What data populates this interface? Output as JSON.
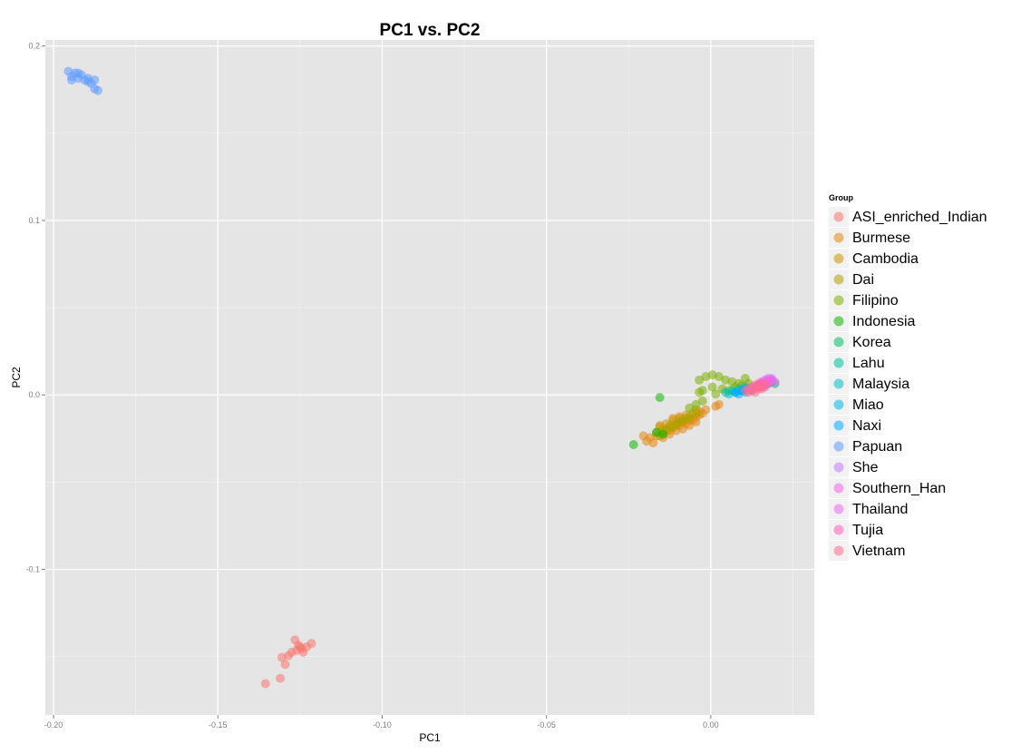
{
  "chart_data": {
    "type": "scatter",
    "title": "PC1 vs. PC2",
    "xlabel": "PC1",
    "ylabel": "PC2",
    "xlim": [
      -0.2025,
      0.0315
    ],
    "ylim": [
      -0.1835,
      0.2035
    ],
    "x_ticks": [
      -0.2,
      -0.15,
      -0.1,
      -0.05,
      0.0
    ],
    "x_tick_labels": [
      "-0.20",
      "-0.15",
      "-0.10",
      "-0.05",
      "0.00"
    ],
    "y_ticks": [
      -0.1,
      0.0,
      0.1,
      0.2
    ],
    "y_tick_labels": [
      "-0.1",
      "0.0",
      "0.1",
      "0.2"
    ],
    "grid": true,
    "legend": {
      "title": "Group",
      "position": "right"
    },
    "series": [
      {
        "name": "ASI_enriched_Indian",
        "color": "#F8766D",
        "points": [
          [
            -0.1355,
            -0.1655
          ],
          [
            -0.131,
            -0.1625
          ],
          [
            -0.1295,
            -0.1545
          ],
          [
            -0.1305,
            -0.1505
          ],
          [
            -0.1285,
            -0.1495
          ],
          [
            -0.1275,
            -0.1475
          ],
          [
            -0.126,
            -0.1465
          ],
          [
            -0.1265,
            -0.1405
          ],
          [
            -0.125,
            -0.1445
          ],
          [
            -0.124,
            -0.1475
          ],
          [
            -0.123,
            -0.1445
          ],
          [
            -0.1215,
            -0.1425
          ],
          [
            -0.1255,
            -0.1435
          ],
          [
            -0.1245,
            -0.1455
          ]
        ]
      },
      {
        "name": "Burmese",
        "color": "#E68613",
        "points": [
          [
            -0.0195,
            -0.0265
          ],
          [
            -0.0185,
            -0.0245
          ],
          [
            -0.0175,
            -0.0275
          ],
          [
            -0.0165,
            -0.0235
          ],
          [
            -0.0145,
            -0.0215
          ],
          [
            -0.0135,
            -0.0195
          ],
          [
            -0.0125,
            -0.0205
          ],
          [
            -0.0115,
            -0.0185
          ],
          [
            -0.0105,
            -0.0165
          ],
          [
            -0.0095,
            -0.0175
          ],
          [
            -0.0085,
            -0.0155
          ],
          [
            -0.0075,
            -0.0165
          ],
          [
            -0.0065,
            -0.0135
          ],
          [
            -0.0055,
            -0.0145
          ],
          [
            -0.0045,
            -0.0125
          ],
          [
            -0.0035,
            -0.0115
          ],
          [
            -0.0025,
            -0.0105
          ],
          [
            -0.0015,
            -0.0085
          ],
          [
            0.0015,
            -0.0065
          ],
          [
            0.0025,
            -0.0055
          ],
          [
            -0.0155,
            -0.0185
          ],
          [
            -0.0145,
            -0.0245
          ],
          [
            -0.0125,
            -0.0225
          ],
          [
            -0.0105,
            -0.0205
          ],
          [
            -0.0085,
            -0.0195
          ],
          [
            -0.0065,
            -0.0175
          ],
          [
            -0.0045,
            -0.0155
          ],
          [
            -0.0205,
            -0.0235
          ],
          [
            -0.0115,
            -0.0135
          ],
          [
            -0.0095,
            -0.0125
          ]
        ]
      },
      {
        "name": "Cambodia",
        "color": "#CD9600",
        "points": [
          [
            -0.0155,
            -0.0175
          ],
          [
            -0.0135,
            -0.0165
          ],
          [
            -0.0115,
            -0.0145
          ],
          [
            -0.0095,
            -0.0135
          ],
          [
            -0.0075,
            -0.0115
          ],
          [
            -0.0055,
            -0.0105
          ],
          [
            -0.0035,
            -0.0095
          ],
          [
            -0.0125,
            -0.0185
          ],
          [
            -0.0105,
            -0.0175
          ],
          [
            -0.0085,
            -0.0155
          ],
          [
            -0.0065,
            -0.0145
          ],
          [
            -0.0145,
            -0.0225
          ],
          [
            -0.0045,
            -0.0085
          ]
        ]
      },
      {
        "name": "Dai",
        "color": "#ABA300",
        "points": [
          [
            -0.0165,
            -0.0215
          ],
          [
            -0.0145,
            -0.0195
          ],
          [
            -0.0125,
            -0.0175
          ],
          [
            -0.0105,
            -0.0165
          ],
          [
            -0.0085,
            -0.0145
          ],
          [
            -0.0065,
            -0.0125
          ],
          [
            -0.0045,
            -0.0105
          ],
          [
            -0.0135,
            -0.0205
          ],
          [
            -0.0115,
            -0.0185
          ],
          [
            -0.0095,
            -0.0155
          ],
          [
            -0.0155,
            -0.0235
          ],
          [
            -0.0075,
            -0.0135
          ]
        ]
      },
      {
        "name": "Filipino",
        "color": "#7CAE00",
        "points": [
          [
            -0.0035,
            0.0085
          ],
          [
            -0.0015,
            0.0105
          ],
          [
            0.0005,
            0.0115
          ],
          [
            0.0025,
            0.0105
          ],
          [
            0.0045,
            0.0085
          ],
          [
            0.0065,
            0.0075
          ],
          [
            0.0085,
            0.0065
          ],
          [
            -0.0025,
            0.0025
          ],
          [
            0.0005,
            0.0045
          ],
          [
            0.0035,
            0.0035
          ],
          [
            0.0055,
            0.0025
          ],
          [
            0.0075,
            0.0045
          ],
          [
            -0.0045,
            -0.0055
          ],
          [
            -0.0065,
            -0.0075
          ],
          [
            -0.0025,
            -0.0035
          ],
          [
            0.0015,
            0.0005
          ],
          [
            0.0105,
            0.0095
          ],
          [
            0.0115,
            0.0065
          ],
          [
            -0.0035,
            0.0015
          ],
          [
            0.0095,
            0.0055
          ]
        ]
      },
      {
        "name": "Indonesia",
        "color": "#0CB702",
        "points": [
          [
            -0.0235,
            -0.0285
          ],
          [
            -0.0165,
            -0.0215
          ],
          [
            -0.0155,
            -0.0015
          ],
          [
            -0.0145,
            -0.0225
          ]
        ]
      },
      {
        "name": "Korea",
        "color": "#00BE67",
        "points": [
          [
            0.0165,
            0.0055
          ],
          [
            0.0175,
            0.0065
          ],
          [
            0.0185,
            0.0075
          ],
          [
            0.0155,
            0.0045
          ],
          [
            0.0195,
            0.0065
          ]
        ]
      },
      {
        "name": "Lahu",
        "color": "#00C19A",
        "points": [
          [
            0.0045,
            0.0015
          ],
          [
            0.0065,
            0.0025
          ],
          [
            0.0085,
            0.0035
          ],
          [
            0.0105,
            0.0045
          ]
        ]
      },
      {
        "name": "Malaysia",
        "color": "#00BFC4",
        "points": [
          [
            0.0055,
            0.0005
          ],
          [
            0.0075,
            0.0015
          ],
          [
            0.0095,
            0.0025
          ],
          [
            0.0115,
            0.0035
          ]
        ]
      },
      {
        "name": "Miao",
        "color": "#00B8E7",
        "points": [
          [
            0.0095,
            0.0025
          ],
          [
            0.0115,
            0.0035
          ],
          [
            0.0135,
            0.0045
          ],
          [
            0.0105,
            0.0015
          ]
        ]
      },
      {
        "name": "Naxi",
        "color": "#00A9FF",
        "points": [
          [
            0.0075,
            0.0015
          ],
          [
            0.0095,
            0.0025
          ],
          [
            0.0085,
            0.0005
          ],
          [
            0.0105,
            0.0035
          ],
          [
            0.0125,
            0.0025
          ]
        ]
      },
      {
        "name": "Papuan",
        "color": "#619CFF",
        "points": [
          [
            -0.1955,
            0.1855
          ],
          [
            -0.1945,
            0.1825
          ],
          [
            -0.1935,
            0.1845
          ],
          [
            -0.1925,
            0.1815
          ],
          [
            -0.1915,
            0.1835
          ],
          [
            -0.1905,
            0.1805
          ],
          [
            -0.1895,
            0.1815
          ],
          [
            -0.1885,
            0.1785
          ],
          [
            -0.1875,
            0.1755
          ],
          [
            -0.1865,
            0.1745
          ],
          [
            -0.1945,
            0.1805
          ],
          [
            -0.1925,
            0.1845
          ],
          [
            -0.1895,
            0.1795
          ],
          [
            -0.1875,
            0.1805
          ]
        ]
      },
      {
        "name": "She",
        "color": "#C77CFF",
        "points": [
          [
            0.0165,
            0.0075
          ],
          [
            0.0175,
            0.0085
          ],
          [
            0.0185,
            0.0095
          ],
          [
            0.0155,
            0.0065
          ]
        ]
      },
      {
        "name": "Southern_Han",
        "color": "#ED68ED",
        "points": [
          [
            0.0145,
            0.0055
          ],
          [
            0.0155,
            0.0075
          ],
          [
            0.0165,
            0.0085
          ],
          [
            0.0175,
            0.0065
          ],
          [
            0.0185,
            0.0085
          ],
          [
            0.0135,
            0.0045
          ],
          [
            0.0195,
            0.0075
          ]
        ]
      },
      {
        "name": "Thailand",
        "color": "#E76BF3",
        "points": [
          [
            0.0125,
            0.0035
          ],
          [
            0.0145,
            0.0055
          ],
          [
            0.0165,
            0.0065
          ],
          [
            0.0185,
            0.0085
          ],
          [
            0.0175,
            0.0095
          ]
        ]
      },
      {
        "name": "Tujia",
        "color": "#FF61C3",
        "points": [
          [
            0.0135,
            0.0045
          ],
          [
            0.0155,
            0.0055
          ],
          [
            0.0175,
            0.0075
          ],
          [
            0.0145,
            0.0065
          ],
          [
            0.0165,
            0.0045
          ]
        ]
      },
      {
        "name": "Vietnam",
        "color": "#FF6C91",
        "points": [
          [
            0.0105,
            0.0025
          ],
          [
            0.0115,
            0.0035
          ],
          [
            0.0125,
            0.0045
          ],
          [
            0.0135,
            0.0055
          ],
          [
            0.0145,
            0.0045
          ],
          [
            0.0155,
            0.0065
          ],
          [
            0.0165,
            0.0055
          ],
          [
            0.0125,
            0.0025
          ],
          [
            0.0145,
            0.0035
          ],
          [
            0.0135,
            0.0015
          ],
          [
            0.0155,
            0.0035
          ],
          [
            0.0115,
            0.0015
          ]
        ]
      }
    ]
  }
}
